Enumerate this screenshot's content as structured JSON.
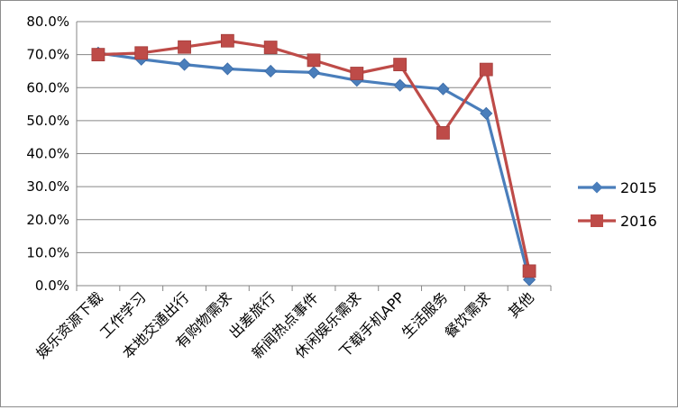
{
  "chart_data": {
    "type": "line",
    "title": "",
    "xlabel": "",
    "ylabel": "",
    "categories": [
      "娱乐资源下载",
      "工作学习",
      "本地交通出行",
      "有购物需求",
      "出差旅行",
      "新闻热点事件",
      "休闲娱乐需求",
      "下载手机APP",
      "生活服务",
      "餐饮需求",
      "其他"
    ],
    "y_tick_labels": [
      "0.0%",
      "10.0%",
      "20.0%",
      "30.0%",
      "40.0%",
      "50.0%",
      "60.0%",
      "70.0%",
      "80.0%"
    ],
    "ylim": [
      0,
      0.8
    ],
    "grid": true,
    "legend_position": "right",
    "series": [
      {
        "name": "2015",
        "color": "#4a7ebb",
        "marker": "diamond",
        "values": [
          0.705,
          0.686,
          0.67,
          0.657,
          0.65,
          0.646,
          0.622,
          0.607,
          0.596,
          0.522,
          0.018
        ]
      },
      {
        "name": "2016",
        "color": "#be4b48",
        "marker": "square",
        "values": [
          0.7,
          0.705,
          0.723,
          0.742,
          0.722,
          0.683,
          0.643,
          0.67,
          0.463,
          0.655,
          0.044
        ]
      }
    ]
  }
}
